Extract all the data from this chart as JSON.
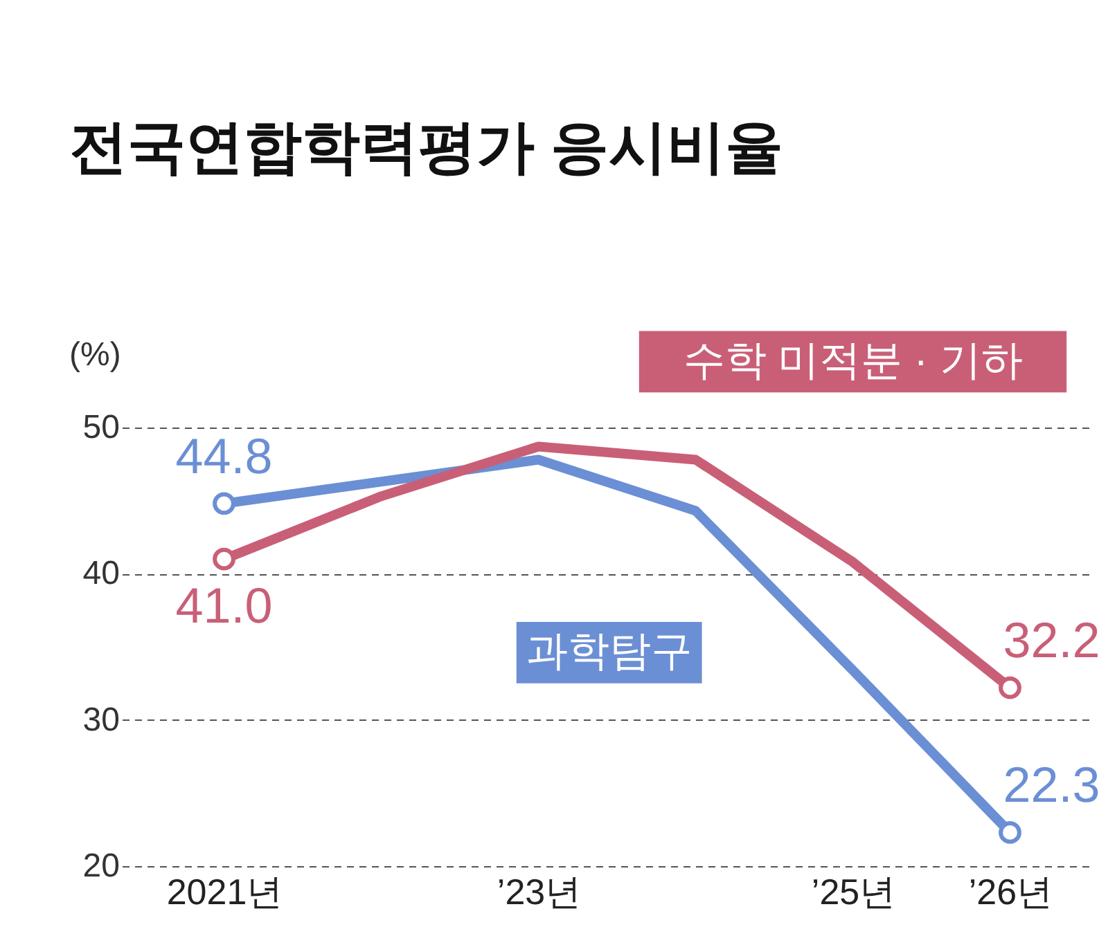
{
  "chart_data": {
    "type": "line",
    "title": "전국연합학력평가 응시비율",
    "ylabel": "(%)",
    "categories": [
      "2021년",
      null,
      "’23년",
      null,
      "’25년",
      "’26년"
    ],
    "series": [
      {
        "name": "과학탐구",
        "color": "#6b8fd4",
        "values": [
          44.8,
          46.3,
          47.8,
          44.3,
          33.4,
          22.3
        ]
      },
      {
        "name": "수학 미적분 · 기하",
        "color": "#c95f77",
        "values": [
          41.0,
          45.3,
          48.7,
          47.8,
          40.8,
          32.2
        ]
      }
    ],
    "ylim": [
      20,
      50
    ],
    "yticks": [
      20,
      30,
      40,
      50
    ],
    "grid": "y",
    "marker": "none",
    "line_style": "solid",
    "annotations": [
      {
        "text": "44.8",
        "x": "2021년",
        "y": 44.8
      },
      {
        "text": "41.0",
        "x": "2021년",
        "y": 41.0
      },
      {
        "text": "32.2",
        "x": "’26년",
        "y": 32.2
      },
      {
        "text": "22.3",
        "x": "’26년",
        "y": 22.3
      }
    ]
  }
}
